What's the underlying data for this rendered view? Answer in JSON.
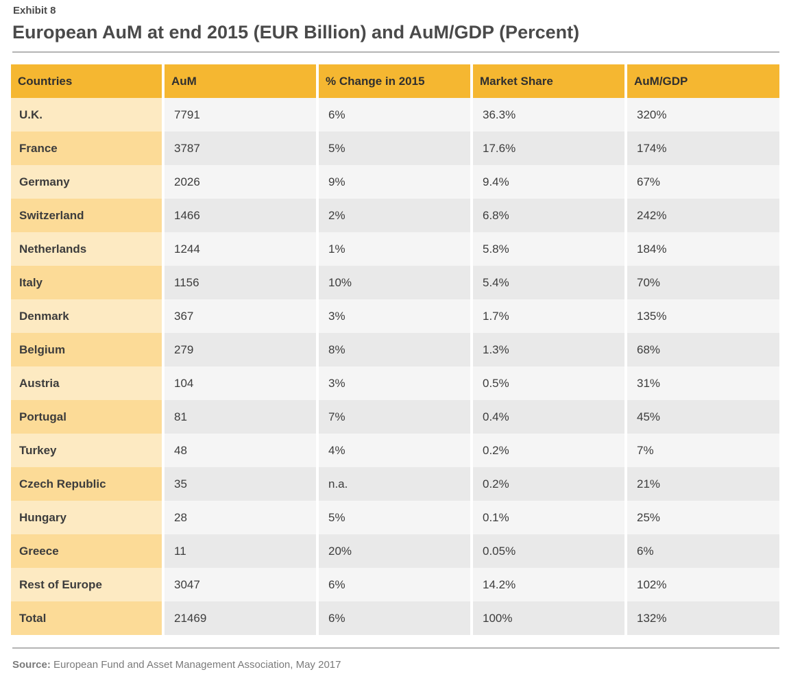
{
  "exhibit": "Exhibit 8",
  "title": "European AuM at end 2015 (EUR Billion) and AuM/GDP (Percent)",
  "source_label": "Source:",
  "source_text": "European Fund and Asset Management Association, May 2017",
  "chart_data": {
    "type": "table",
    "title": "European AuM at end 2015 (EUR Billion) and AuM/GDP (Percent)",
    "columns": [
      "Countries",
      "AuM",
      "% Change in 2015",
      "Market Share",
      "AuM/GDP"
    ],
    "rows": [
      [
        "U.K.",
        "7791",
        "6%",
        "36.3%",
        "320%"
      ],
      [
        "France",
        "3787",
        "5%",
        "17.6%",
        "174%"
      ],
      [
        "Germany",
        "2026",
        "9%",
        "9.4%",
        "67%"
      ],
      [
        "Switzerland",
        "1466",
        "2%",
        "6.8%",
        "242%"
      ],
      [
        "Netherlands",
        "1244",
        "1%",
        "5.8%",
        "184%"
      ],
      [
        "Italy",
        "1156",
        "10%",
        "5.4%",
        "70%"
      ],
      [
        "Denmark",
        "367",
        "3%",
        "1.7%",
        "135%"
      ],
      [
        "Belgium",
        "279",
        "8%",
        "1.3%",
        "68%"
      ],
      [
        "Austria",
        "104",
        "3%",
        "0.5%",
        "31%"
      ],
      [
        "Portugal",
        "81",
        "7%",
        "0.4%",
        "45%"
      ],
      [
        "Turkey",
        "48",
        "4%",
        "0.2%",
        "7%"
      ],
      [
        "Czech Republic",
        "35",
        "n.a.",
        "0.2%",
        "21%"
      ],
      [
        "Hungary",
        "28",
        "5%",
        "0.1%",
        "25%"
      ],
      [
        "Greece",
        "11",
        "20%",
        "0.05%",
        "6%"
      ],
      [
        "Rest of Europe",
        "3047",
        "6%",
        "14.2%",
        "102%"
      ],
      [
        "Total",
        "21469",
        "6%",
        "100%",
        "132%"
      ]
    ]
  }
}
